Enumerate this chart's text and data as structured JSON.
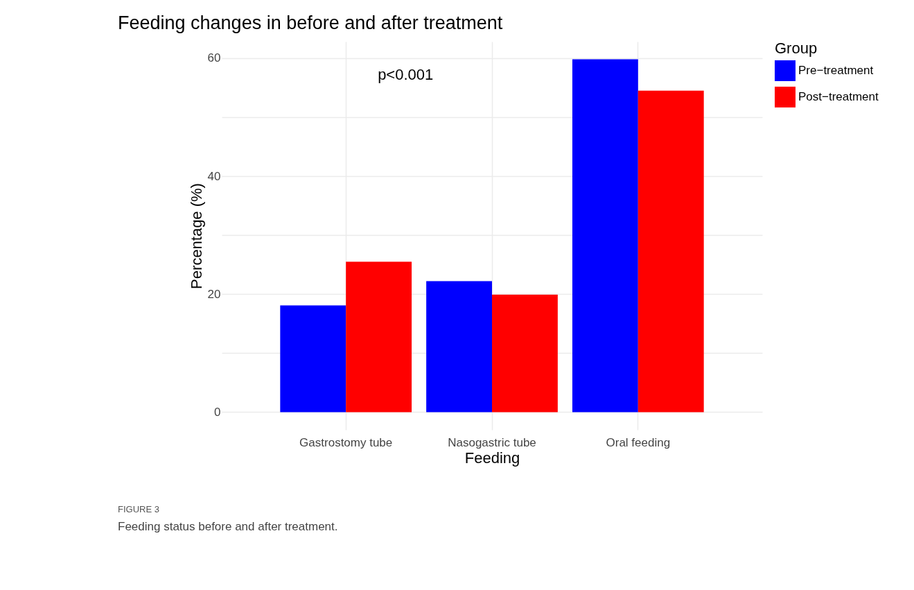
{
  "chart_data": {
    "type": "bar",
    "title": "Feeding changes in before and after treatment",
    "xlabel": "Feeding",
    "ylabel": "Percentage (%)",
    "legend_title": "Group",
    "categories": [
      "Gastrostomy tube",
      "Nasogastric tube",
      "Oral feeding"
    ],
    "series": [
      {
        "name": "Pre−treatment",
        "color": "#0000ff",
        "values": [
          18.1,
          22.2,
          59.8
        ]
      },
      {
        "name": "Post−treatment",
        "color": "#ff0000",
        "values": [
          25.5,
          19.9,
          54.5
        ]
      }
    ],
    "ylim": [
      -3,
      62.8
    ],
    "yticks": [
      0,
      {
        "value": 10,
        "label": null
      },
      20,
      {
        "value": 30,
        "label": null
      },
      40,
      {
        "value": 50,
        "label": null
      },
      60
    ],
    "grid": true,
    "legend": "right",
    "annotations": [
      "p<0.001",
      "FIGURE 3",
      "Feeding status before and after treatment."
    ]
  }
}
